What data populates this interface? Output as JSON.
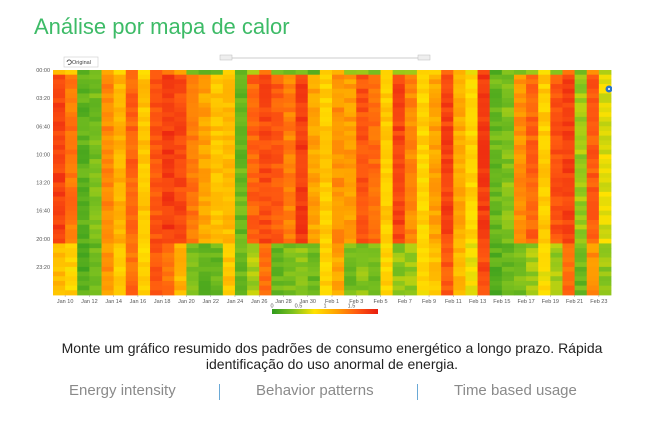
{
  "page": {
    "title": "Análise por mapa de calor",
    "caption_line1": "Monte um gráfico resumido dos padrões de consumo energético a longo prazo. Rápida",
    "caption_line2": "identificação do uso anormal de energia."
  },
  "toolbar": {
    "original_label": "Original"
  },
  "tabs": [
    {
      "label": "Energy intensity"
    },
    {
      "label": "Behavior patterns"
    },
    {
      "label": "Time based usage"
    }
  ],
  "colors": {
    "title": "#3dbb67",
    "scale": [
      "#2f9a1e",
      "#7fc21f",
      "#ffe200",
      "#ffa500",
      "#ff5a10",
      "#e81d10"
    ]
  },
  "chart_data": {
    "type": "heatmap",
    "y_ticks": [
      "00:00",
      "03:20",
      "06:40",
      "10:00",
      "13:20",
      "16:40",
      "20:00",
      "23:20"
    ],
    "x_ticks": [
      "Jan 10",
      "Jan 12",
      "Jan 14",
      "Jan 16",
      "Jan 18",
      "Jan 20",
      "Jan 22",
      "Jan 24",
      "Jan 26",
      "Jan 28",
      "Jan 30",
      "Feb 1",
      "Feb 3",
      "Feb 5",
      "Feb 7",
      "Feb 9",
      "Feb 11",
      "Feb 13",
      "Feb 15",
      "Feb 17",
      "Feb 19",
      "Feb 21",
      "Feb 23"
    ],
    "legend_ticks": [
      "0",
      "0.5",
      "1",
      "1.5"
    ],
    "value_range": [
      0,
      2
    ],
    "num_days": 46,
    "columns": [
      {
        "base": 1.75,
        "low": 1.05
      },
      {
        "base": 1.45,
        "low": 0.9
      },
      {
        "base": 0.25,
        "low": 0.2
      },
      {
        "base": 0.35,
        "low": 0.3
      },
      {
        "base": 1.35,
        "low": 1.3
      },
      {
        "base": 1.1,
        "low": 0.95
      },
      {
        "base": 1.55,
        "low": 1.5
      },
      {
        "base": 1.0,
        "low": 0.9
      },
      {
        "base": 1.65,
        "low": 1.6
      },
      {
        "base": 1.8,
        "low": 1.5
      },
      {
        "base": 1.7,
        "low": 1.1
      },
      {
        "base": 1.45,
        "low": 0.35
      },
      {
        "base": 1.2,
        "low": 0.25
      },
      {
        "base": 1.0,
        "low": 0.3
      },
      {
        "base": 1.05,
        "low": 1.0
      },
      {
        "base": 0.3,
        "low": 0.3
      },
      {
        "base": 1.55,
        "low": 0.55
      },
      {
        "base": 1.7,
        "low": 1.45
      },
      {
        "base": 1.6,
        "low": 0.3
      },
      {
        "base": 1.4,
        "low": 0.35
      },
      {
        "base": 1.8,
        "low": 0.4
      },
      {
        "base": 1.2,
        "low": 0.3
      },
      {
        "base": 0.95,
        "low": 0.9
      },
      {
        "base": 1.3,
        "low": 1.2
      },
      {
        "base": 1.25,
        "low": 0.35
      },
      {
        "base": 1.65,
        "low": 0.4
      },
      {
        "base": 1.5,
        "low": 0.35
      },
      {
        "base": 0.95,
        "low": 0.9
      },
      {
        "base": 1.75,
        "low": 0.45
      },
      {
        "base": 1.35,
        "low": 0.5
      },
      {
        "base": 0.9,
        "low": 0.85
      },
      {
        "base": 1.2,
        "low": 1.0
      },
      {
        "base": 1.75,
        "low": 1.6
      },
      {
        "base": 1.15,
        "low": 1.1
      },
      {
        "base": 0.9,
        "low": 0.8
      },
      {
        "base": 1.8,
        "low": 1.7
      },
      {
        "base": 0.3,
        "low": 0.2
      },
      {
        "base": 0.4,
        "low": 0.3
      },
      {
        "base": 1.3,
        "low": 0.35
      },
      {
        "base": 1.55,
        "low": 0.5
      },
      {
        "base": 0.95,
        "low": 0.8
      },
      {
        "base": 1.65,
        "low": 0.5
      },
      {
        "base": 1.75,
        "low": 1.5
      },
      {
        "base": 0.5,
        "low": 0.3
      },
      {
        "base": 1.6,
        "low": 1.3
      },
      {
        "base": 0.7,
        "low": 0.45
      }
    ]
  }
}
